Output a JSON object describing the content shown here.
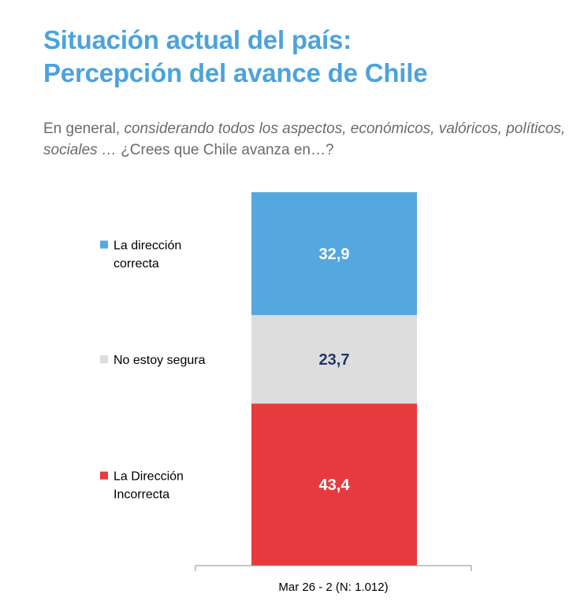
{
  "header": {
    "title_line1": "Situación actual del país:",
    "title_line2": "Percepción del avance de Chile",
    "question_plain1": "En general, ",
    "question_italic": "considerando todos los aspectos, económicos, valóricos, políticos, sociales …",
    "question_plain2": " ¿Crees que Chile avanza en…?"
  },
  "chart_data": {
    "type": "bar",
    "stacked": true,
    "categories": [
      "Mar 26 - 2 (N: 1.012)"
    ],
    "series": [
      {
        "name": "La Dirección Incorrecta",
        "legend_lines": [
          "La Dirección",
          "Incorrecta"
        ],
        "values": [
          43.4
        ],
        "label": "43,4",
        "color": "#E63B3E",
        "label_color": "#ffffff"
      },
      {
        "name": "No estoy segura",
        "legend_lines": [
          "No estoy segura"
        ],
        "values": [
          23.7
        ],
        "label": "23,7",
        "color": "#DDDDDD",
        "label_color": "#1F3864"
      },
      {
        "name": "La dirección correcta",
        "legend_lines": [
          "La dirección",
          "correcta"
        ],
        "values": [
          32.9
        ],
        "label": "32,9",
        "color": "#55A8DF",
        "label_color": "#ffffff"
      }
    ],
    "ylim": [
      0,
      100
    ],
    "legend_position": "left",
    "title": "Situación actual del país: Percepción del avance de Chile"
  }
}
